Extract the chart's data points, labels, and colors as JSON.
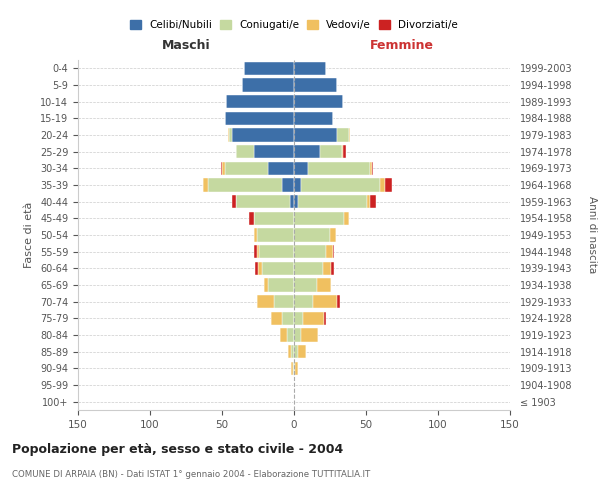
{
  "age_groups": [
    "100+",
    "95-99",
    "90-94",
    "85-89",
    "80-84",
    "75-79",
    "70-74",
    "65-69",
    "60-64",
    "55-59",
    "50-54",
    "45-49",
    "40-44",
    "35-39",
    "30-34",
    "25-29",
    "20-24",
    "15-19",
    "10-14",
    "5-9",
    "0-4"
  ],
  "birth_years": [
    "≤ 1903",
    "1904-1908",
    "1909-1913",
    "1914-1918",
    "1919-1923",
    "1924-1928",
    "1929-1933",
    "1934-1938",
    "1939-1943",
    "1944-1948",
    "1949-1953",
    "1954-1958",
    "1959-1963",
    "1964-1968",
    "1969-1973",
    "1974-1978",
    "1979-1983",
    "1984-1988",
    "1989-1993",
    "1994-1998",
    "1999-2003"
  ],
  "male_celibe": [
    0,
    0,
    0,
    0,
    0,
    0,
    0,
    0,
    0,
    0,
    0,
    0,
    3,
    8,
    18,
    28,
    43,
    48,
    47,
    36,
    35
  ],
  "male_coniugato": [
    0,
    0,
    1,
    2,
    5,
    8,
    14,
    18,
    22,
    24,
    26,
    28,
    37,
    52,
    30,
    12,
    2,
    0,
    0,
    0,
    0
  ],
  "male_vedovo": [
    0,
    0,
    1,
    2,
    5,
    8,
    12,
    3,
    3,
    2,
    2,
    0,
    0,
    3,
    2,
    0,
    1,
    0,
    0,
    0,
    0
  ],
  "male_divorziato": [
    0,
    0,
    0,
    0,
    0,
    0,
    0,
    0,
    2,
    2,
    0,
    3,
    3,
    0,
    1,
    0,
    0,
    0,
    0,
    0,
    0
  ],
  "female_nubile": [
    0,
    0,
    0,
    0,
    0,
    0,
    0,
    0,
    0,
    0,
    0,
    0,
    3,
    5,
    10,
    18,
    30,
    27,
    34,
    30,
    22
  ],
  "female_coniugata": [
    0,
    0,
    1,
    3,
    5,
    6,
    13,
    16,
    20,
    22,
    25,
    35,
    48,
    55,
    43,
    15,
    8,
    0,
    0,
    0,
    0
  ],
  "female_vedova": [
    0,
    0,
    2,
    5,
    12,
    15,
    17,
    10,
    6,
    5,
    4,
    3,
    2,
    3,
    1,
    1,
    1,
    0,
    0,
    0,
    0
  ],
  "female_divorziata": [
    0,
    0,
    0,
    0,
    0,
    1,
    2,
    0,
    2,
    1,
    0,
    0,
    4,
    5,
    1,
    2,
    0,
    0,
    0,
    0,
    0
  ],
  "color_celibe": "#3d6fa8",
  "color_coniugato": "#c5d9a0",
  "color_vedovo": "#f0c060",
  "color_divorziato": "#cc2222",
  "title": "Popolazione per età, sesso e stato civile - 2004",
  "subtitle": "COMUNE DI ARPAIA (BN) - Dati ISTAT 1° gennaio 2004 - Elaborazione TUTTITALIA.IT",
  "xlabel_left": "Maschi",
  "xlabel_right": "Femmine",
  "ylabel_left": "Fasce di età",
  "ylabel_right": "Anni di nascita",
  "xlim": 150,
  "bg_color": "#ffffff",
  "grid_color": "#cccccc"
}
